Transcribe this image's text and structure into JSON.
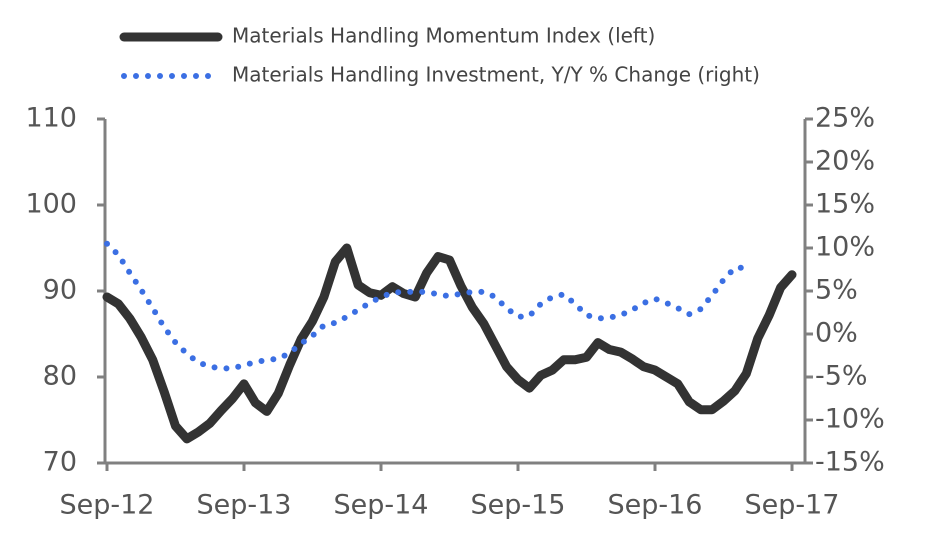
{
  "chart_data": {
    "type": "line",
    "categories": [
      "Sep-12",
      null,
      null,
      null,
      null,
      null,
      null,
      null,
      null,
      null,
      null,
      null,
      "Sep-13",
      null,
      null,
      null,
      null,
      null,
      null,
      null,
      null,
      null,
      null,
      null,
      "Sep-14",
      null,
      null,
      null,
      null,
      null,
      null,
      null,
      null,
      null,
      null,
      null,
      "Sep-15",
      null,
      null,
      null,
      null,
      null,
      null,
      null,
      null,
      null,
      null,
      null,
      "Sep-16",
      null,
      null,
      null,
      null,
      null,
      null,
      null,
      null,
      null,
      null,
      null,
      "Sep-17"
    ],
    "series": [
      {
        "name": "Materials Handling Momentum Index (left)",
        "color": "#333333",
        "style": "solid",
        "values": [
          89.3,
          88.5,
          86.8,
          84.6,
          82.0,
          78.3,
          74.3,
          72.8,
          73.6,
          74.6,
          76.1,
          77.5,
          79.2,
          77.0,
          76.0,
          78.1,
          81.4,
          84.4,
          86.5,
          89.3,
          93.4,
          95.0,
          90.7,
          89.8,
          89.5,
          90.5,
          89.7,
          89.3,
          92.1,
          94.0,
          93.6,
          90.6,
          88.1,
          86.2,
          83.7,
          81.2,
          79.7,
          78.7,
          80.2,
          80.8,
          82.0,
          82.0,
          82.3,
          84.0,
          83.2,
          82.9,
          82.1,
          81.2,
          80.8,
          80.0,
          79.2,
          77.1,
          76.2,
          76.2,
          77.2,
          78.4,
          80.4,
          84.5,
          87.2,
          90.4,
          91.9
        ]
      },
      {
        "name": "Materials Handling Investment, Y/Y % Change (right)",
        "color": "#3b6fe3",
        "style": "dotted",
        "axis": "y2",
        "values": [
          10.5,
          9.2,
          7.1,
          5.1,
          3.0,
          0.8,
          -1.0,
          -2.3,
          -3.3,
          -3.8,
          -4.0,
          -4.0,
          -3.6,
          -3.3,
          -3.0,
          -2.9,
          -2.2,
          -1.1,
          -0.2,
          1.0,
          1.3,
          2.0,
          2.8,
          3.6,
          4.3,
          4.8,
          4.9,
          4.9,
          4.9,
          4.6,
          4.4,
          4.7,
          4.9,
          4.9,
          4.3,
          3.0,
          2.0,
          2.1,
          3.5,
          4.3,
          4.6,
          3.5,
          2.2,
          1.8,
          1.9,
          2.2,
          2.8,
          3.6,
          4.1,
          3.6,
          3.0,
          2.3,
          2.9,
          4.5,
          6.3,
          7.7,
          7.7,
          null,
          null,
          null,
          null
        ]
      }
    ],
    "ylim": [
      70,
      110
    ],
    "yticks": [
      70,
      80,
      90,
      100,
      110
    ],
    "y2lim": [
      -15,
      25
    ],
    "y2ticks": [
      {
        "value": -15,
        "label": "-15%"
      },
      {
        "value": -10,
        "label": "-10%"
      },
      {
        "value": -5,
        "label": "-5%"
      },
      {
        "value": 0,
        "label": "0%"
      },
      {
        "value": 5,
        "label": "5%"
      },
      {
        "value": 10,
        "label": "10%"
      },
      {
        "value": 15,
        "label": "15%"
      },
      {
        "value": 20,
        "label": "20%"
      },
      {
        "value": 25,
        "label": "25%"
      }
    ],
    "legend": "top"
  }
}
